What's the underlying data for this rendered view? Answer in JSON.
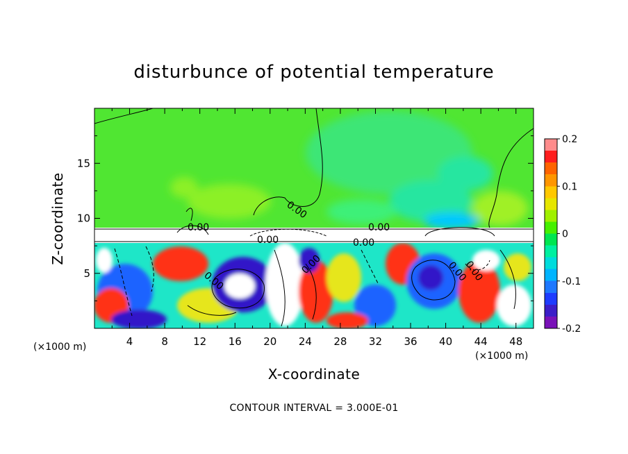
{
  "chart_data": {
    "type": "heatmap",
    "title": "disturbunce of potential temperature",
    "xlabel": "X-coordinate",
    "ylabel": "Z-coordinate",
    "x_unit": "(×1000 m)",
    "x_unit_right": "(×1000 m)",
    "xlim": [
      0,
      50
    ],
    "ylim": [
      0,
      20
    ],
    "x_ticks": [
      "4",
      "8",
      "12",
      "16",
      "20",
      "24",
      "28",
      "32",
      "36",
      "40",
      "44",
      "48"
    ],
    "x_tick_values": [
      4,
      8,
      12,
      16,
      20,
      24,
      28,
      32,
      36,
      40,
      44,
      48
    ],
    "y_ticks": [
      "5",
      "10",
      "15"
    ],
    "y_tick_values": [
      5,
      10,
      15
    ],
    "contour_interval_text": "CONTOUR INTERVAL = 3.000E-01",
    "contour_labels": [
      "0.00",
      "0.00",
      "0.00",
      "0.00",
      "0.00",
      "0.00",
      "0.00",
      "0.00",
      "0.00"
    ],
    "colorbar": {
      "min": -0.2,
      "max": 0.2,
      "tick_labels": [
        "0.2",
        "0.1",
        "0",
        "-0.1",
        "-0.2"
      ],
      "tick_values": [
        0.2,
        0.1,
        0,
        -0.1,
        -0.2
      ],
      "colors": [
        "#7a12b8",
        "#3c1ec8",
        "#1e3cff",
        "#1e78ff",
        "#00b4ff",
        "#00dcdc",
        "#00f0a0",
        "#00e650",
        "#46f000",
        "#a0f000",
        "#e6e600",
        "#ffc800",
        "#ff9600",
        "#ff6400",
        "#ff1e1e",
        "#ff8c8c"
      ]
    },
    "field_colors": {
      "background": "#50e632",
      "upper_green": "#46e83c",
      "light_green": "#78f028",
      "cyan": "#1ee6c8",
      "blue": "#1e64ff",
      "dark_blue": "#3214c8",
      "red": "#ff3214",
      "yellow": "#e6e61e",
      "white": "#ffffff"
    }
  }
}
